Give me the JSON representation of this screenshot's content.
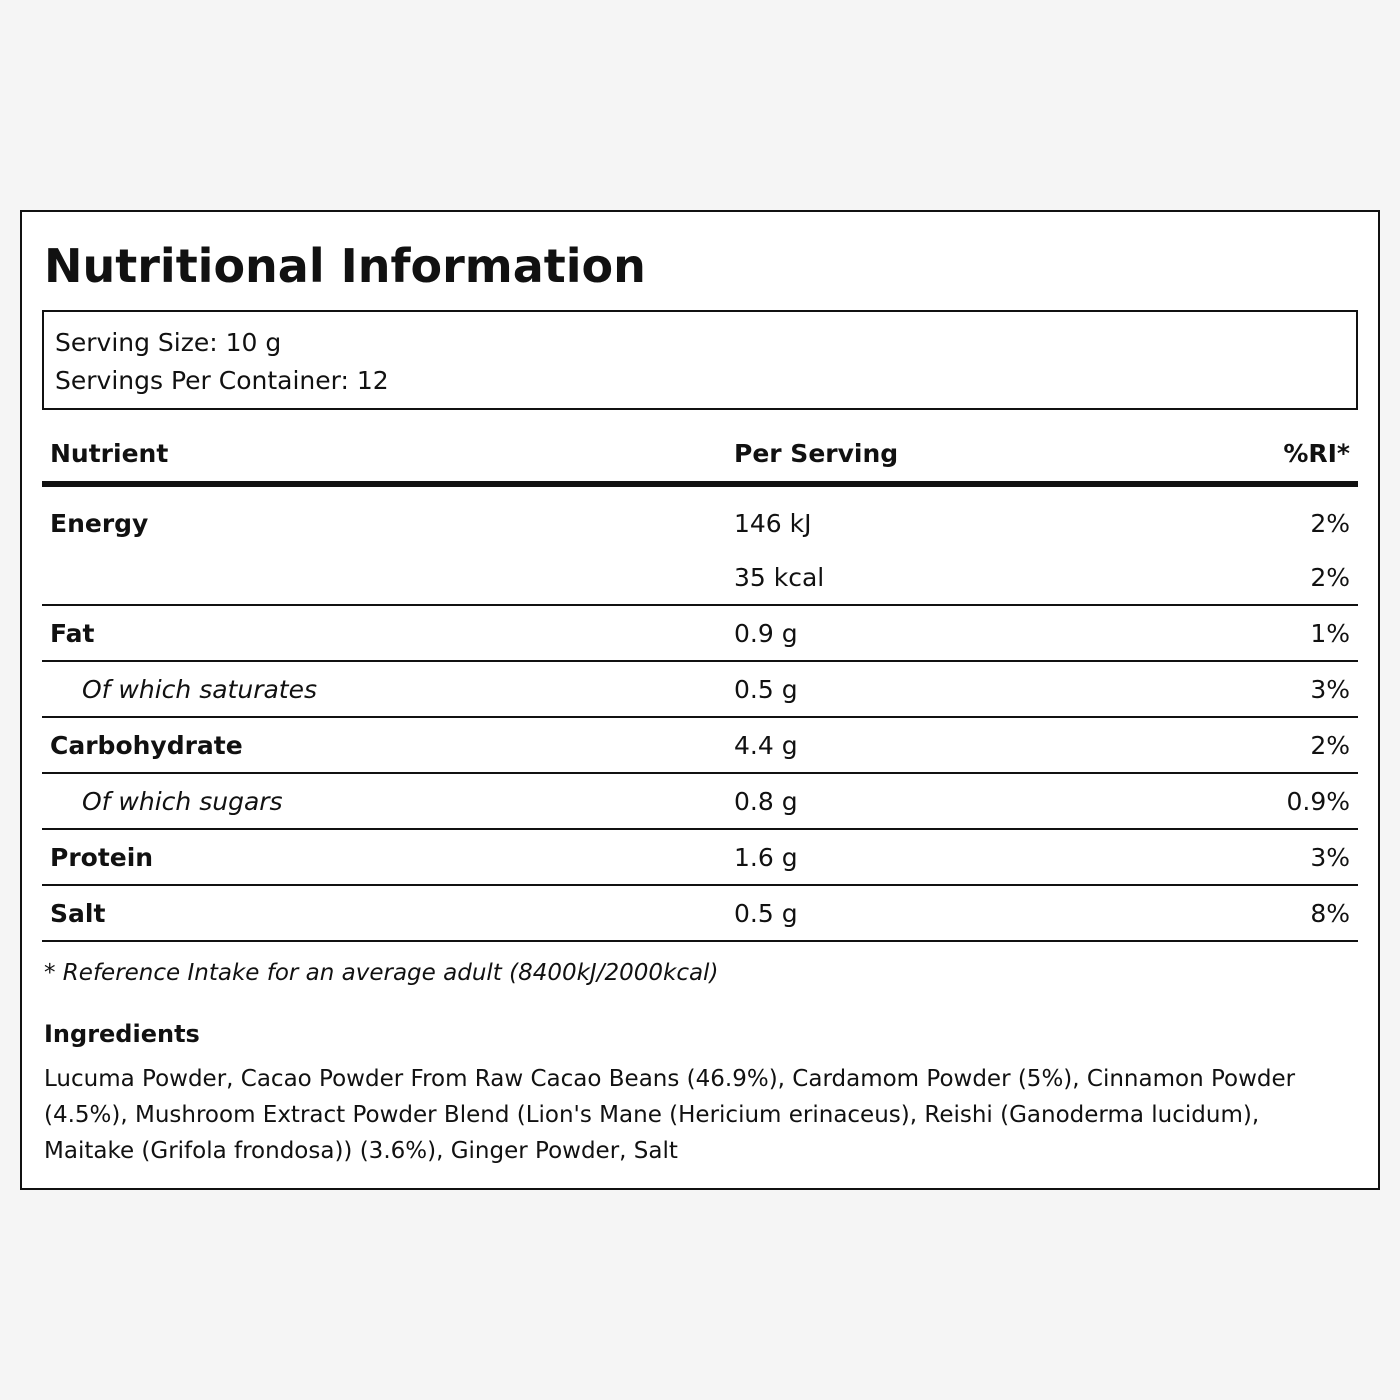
{
  "title": "Nutritional Information",
  "serving": {
    "size": "Serving Size: 10 g",
    "per_container": "Servings Per Container: 12"
  },
  "table": {
    "headers": {
      "nutrient": "Nutrient",
      "per_serving": "Per Serving",
      "ri": "%RI*"
    },
    "rows": [
      {
        "name": "Energy",
        "value": "146 kJ",
        "ri": "2%"
      },
      {
        "name": "",
        "value": "35 kcal",
        "ri": "2%"
      },
      {
        "name": "Fat",
        "value": "0.9 g",
        "ri": "1%"
      },
      {
        "name": "Of which saturates",
        "value": "0.5 g",
        "ri": "3%"
      },
      {
        "name": "Carbohydrate",
        "value": "4.4 g",
        "ri": "2%"
      },
      {
        "name": "Of which sugars",
        "value": "0.8 g",
        "ri": "0.9%"
      },
      {
        "name": "Protein",
        "value": "1.6 g",
        "ri": "3%"
      },
      {
        "name": "Salt",
        "value": "0.5 g",
        "ri": "8%"
      }
    ]
  },
  "footnote": "* Reference Intake for an average adult (8400kJ/2000kcal)",
  "ingredients": {
    "heading": "Ingredients",
    "lines": [
      "Lucuma Powder, Cacao Powder From Raw Cacao Beans (46.9%), Cardamom Powder (5%), Cinnamon Powder",
      "(4.5%), Mushroom Extract Powder Blend (Lion's Mane (Hericium erinaceus), Reishi (Ganoderma lucidum),",
      "Maitake (Grifola frondosa)) (3.6%), Ginger Powder, Salt"
    ]
  }
}
